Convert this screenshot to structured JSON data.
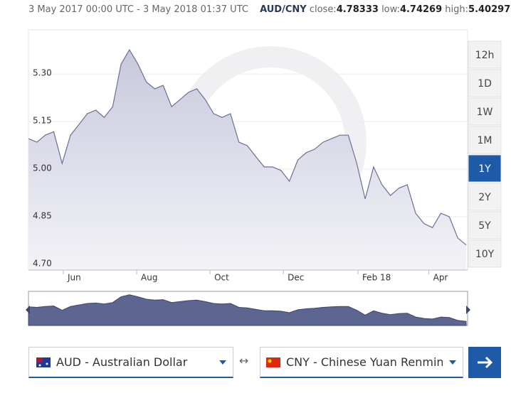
{
  "header": {
    "range": "3 May 2017 00:00 UTC - 3 May 2018 01:37 UTC",
    "pair": "AUD/CNY",
    "close_label": "close:",
    "close": "4.78333",
    "low_label": "low:",
    "low": "4.74269",
    "high_label": "high:",
    "high": "5.40297"
  },
  "chart_data": {
    "type": "area",
    "color": "#6b7094",
    "x": [
      0,
      7,
      14,
      21,
      28,
      35,
      42,
      49,
      56,
      63,
      70,
      77,
      84,
      91,
      98,
      105,
      112,
      119,
      126,
      133,
      140,
      147,
      154,
      161,
      168,
      175,
      182,
      189,
      196,
      203,
      210,
      217,
      224,
      231,
      238,
      245,
      252,
      259,
      266,
      273,
      280,
      287,
      294,
      301,
      308,
      315,
      322,
      329,
      336,
      343,
      350,
      357,
      364
    ],
    "values": [
      5.096,
      5.085,
      5.107,
      5.118,
      5.018,
      5.107,
      5.141,
      5.175,
      5.186,
      5.163,
      5.197,
      5.331,
      5.376,
      5.331,
      5.275,
      5.253,
      5.264,
      5.197,
      5.219,
      5.242,
      5.253,
      5.219,
      5.175,
      5.163,
      5.175,
      5.085,
      5.074,
      5.04,
      5.007,
      5.007,
      4.996,
      4.962,
      5.029,
      5.052,
      5.063,
      5.085,
      5.096,
      5.107,
      5.107,
      5.018,
      4.906,
      5.007,
      4.951,
      4.917,
      4.94,
      4.951,
      4.861,
      4.828,
      4.816,
      4.861,
      4.85,
      4.783,
      4.761
    ],
    "xlim": [
      0,
      364
    ],
    "xticks": [
      {
        "value": 29,
        "label": "Jun"
      },
      {
        "value": 90,
        "label": "Aug"
      },
      {
        "value": 151,
        "label": "Oct"
      },
      {
        "value": 212,
        "label": "Dec"
      },
      {
        "value": 274,
        "label": "Feb 18"
      },
      {
        "value": 333,
        "label": "Apr"
      }
    ],
    "ylim": [
      4.682,
      5.439
    ],
    "yticks": [
      {
        "value": 4.7,
        "label": "4.70"
      },
      4.85,
      {
        "value": 5,
        "label": "5.00"
      },
      5.15,
      {
        "value": 5.3,
        "label": "5.30"
      }
    ],
    "grid": true
  },
  "ranges": [
    "12h",
    "1D",
    "1W",
    "1M",
    "1Y",
    "2Y",
    "5Y",
    "10Y"
  ],
  "selected_range": "1Y",
  "from_currency": "AUD - Australian Dollar",
  "swap": "↔",
  "to_currency": "CNY - Chinese Yuan Renminbi"
}
